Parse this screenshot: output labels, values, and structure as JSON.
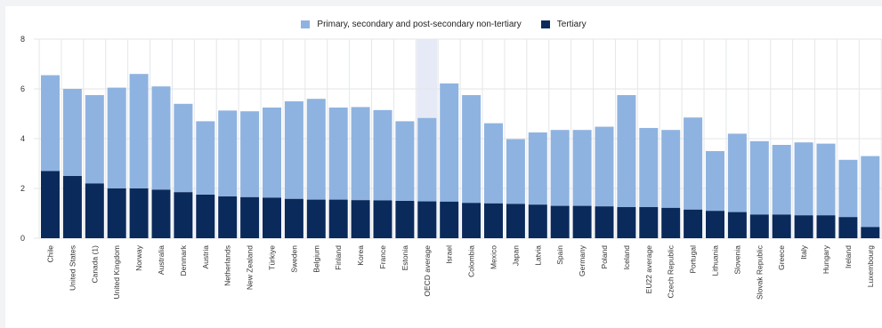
{
  "colors": {
    "primary": "#8fb3e0",
    "tertiary": "#0b2a5c",
    "grid": "#e4e6e9",
    "highlight": "#e6eaf6"
  },
  "legend": {
    "primary_label": "Primary, secondary and post-secondary non-tertiary",
    "tertiary_label": "Tertiary"
  },
  "chart_data": {
    "type": "bar",
    "stacked": true,
    "grid": true,
    "legend_position": "top-center",
    "ylim": [
      0,
      8
    ],
    "yticks": [
      0,
      2,
      4,
      6,
      8
    ],
    "highlighted_category": "OECD average",
    "categories": [
      "Chile",
      "United States",
      "Canada (1)",
      "United Kingdom",
      "Norway",
      "Australia",
      "Denmark",
      "Austria",
      "Netherlands",
      "New Zealand",
      "Türkiye",
      "Sweden",
      "Belgium",
      "Finland",
      "Korea",
      "France",
      "Estonia",
      "OECD average",
      "Israel",
      "Colombia",
      "Mexico",
      "Japan",
      "Latvia",
      "Spain",
      "Germany",
      "Poland",
      "Iceland",
      "EU22 average",
      "Czech Republic",
      "Portugal",
      "Lithuania",
      "Slovenia",
      "Slovak Republic",
      "Greece",
      "Italy",
      "Hungary",
      "Ireland",
      "Luxembourg"
    ],
    "series": [
      {
        "name": "Tertiary",
        "values": [
          2.7,
          2.5,
          2.2,
          2.0,
          2.0,
          1.95,
          1.85,
          1.75,
          1.68,
          1.65,
          1.63,
          1.58,
          1.55,
          1.55,
          1.53,
          1.52,
          1.5,
          1.48,
          1.47,
          1.42,
          1.4,
          1.38,
          1.35,
          1.3,
          1.3,
          1.28,
          1.25,
          1.25,
          1.22,
          1.15,
          1.1,
          1.05,
          0.95,
          0.95,
          0.92,
          0.92,
          0.85,
          0.45
        ]
      },
      {
        "name": "Primary, secondary and post-secondary non-tertiary",
        "values": [
          3.85,
          3.5,
          3.55,
          4.05,
          4.6,
          4.15,
          3.55,
          2.95,
          3.45,
          3.45,
          3.62,
          3.92,
          4.05,
          3.7,
          3.74,
          3.63,
          3.2,
          3.35,
          4.75,
          4.33,
          3.22,
          2.6,
          2.9,
          3.05,
          3.05,
          3.2,
          4.5,
          3.18,
          3.13,
          3.7,
          2.4,
          3.15,
          2.95,
          2.8,
          2.93,
          2.88,
          2.3,
          2.85
        ]
      }
    ]
  }
}
